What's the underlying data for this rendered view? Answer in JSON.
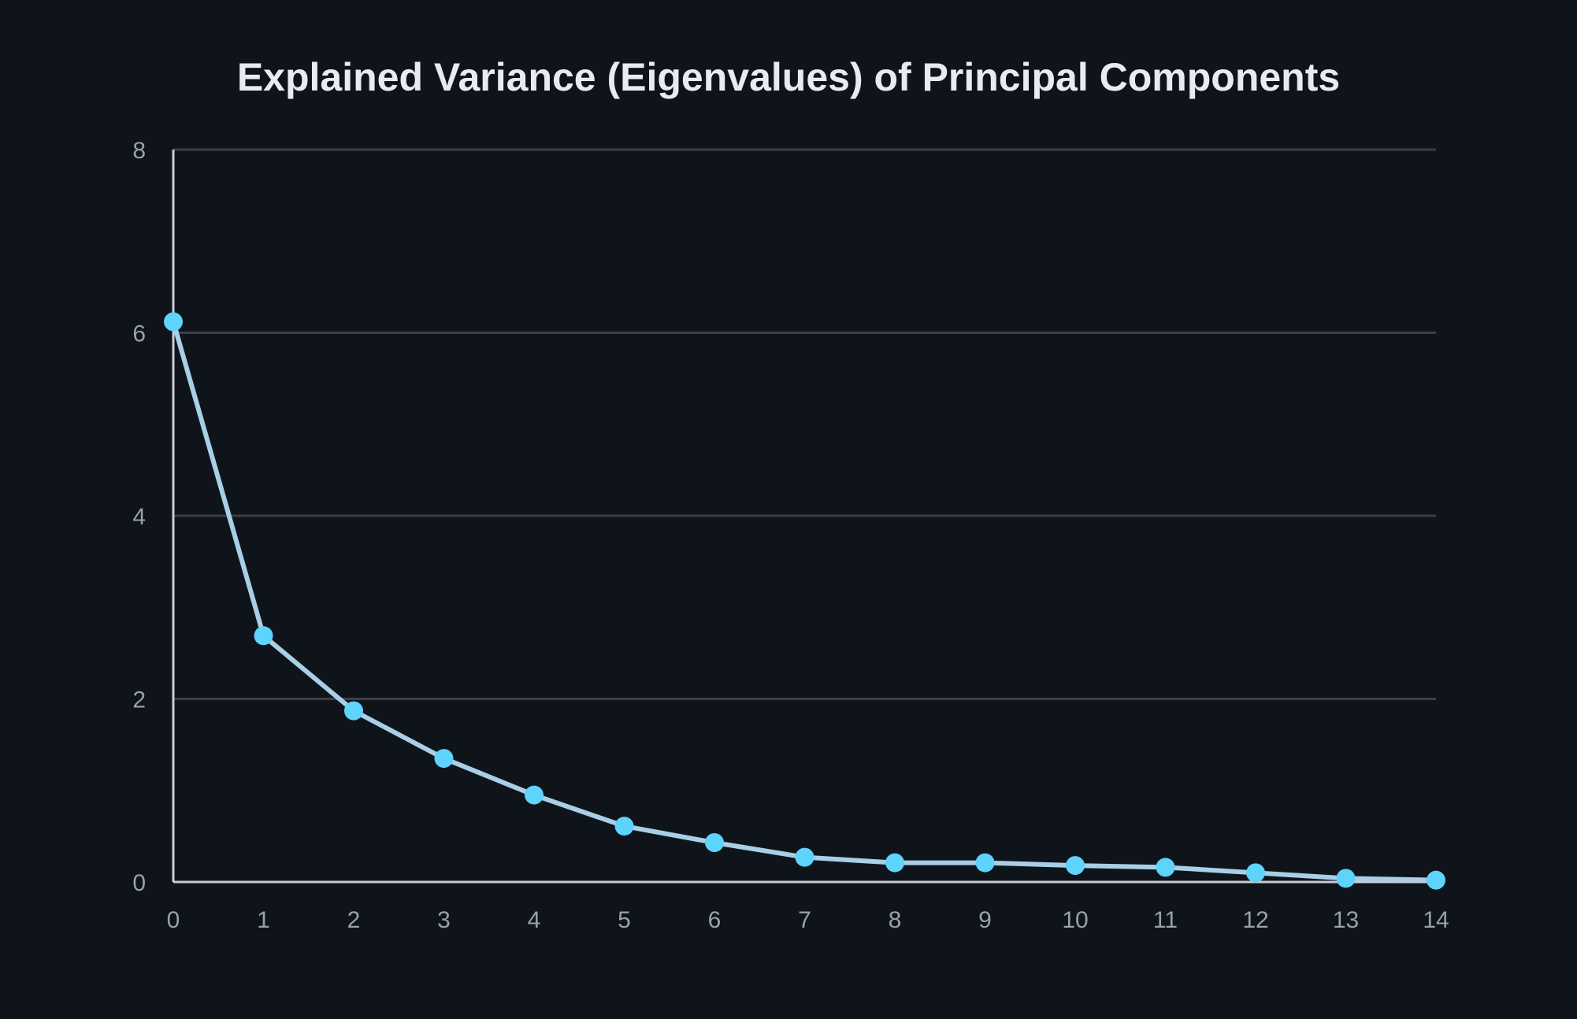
{
  "chart_data": {
    "type": "line",
    "title": "Explained Variance (Eigenvalues) of Principal Components",
    "xlabel": "",
    "ylabel": "",
    "x": [
      0,
      1,
      2,
      3,
      4,
      5,
      6,
      7,
      8,
      9,
      10,
      11,
      12,
      13,
      14
    ],
    "x_ticks": [
      "0",
      "1",
      "2",
      "3",
      "4",
      "5",
      "6",
      "7",
      "8",
      "9",
      "10",
      "11",
      "12",
      "13",
      "14"
    ],
    "y_ticks": [
      "0",
      "2",
      "4",
      "6",
      "8"
    ],
    "xlim": [
      0,
      14
    ],
    "ylim": [
      0,
      8
    ],
    "grid": "horizontal",
    "legend": "none",
    "series": [
      {
        "values": [
          6.12,
          2.69,
          1.87,
          1.35,
          0.95,
          0.61,
          0.43,
          0.27,
          0.21,
          0.21,
          0.18,
          0.16,
          0.1,
          0.04,
          0.02
        ]
      }
    ],
    "colors": {
      "background": "#0f141b",
      "line": "#a8cfe6",
      "marker": "#5ed3fb",
      "grid": "#3a3f46",
      "axis": "#c9cdd3",
      "title": "#e8ebf0",
      "tick_label": "#9aa1ab"
    }
  }
}
